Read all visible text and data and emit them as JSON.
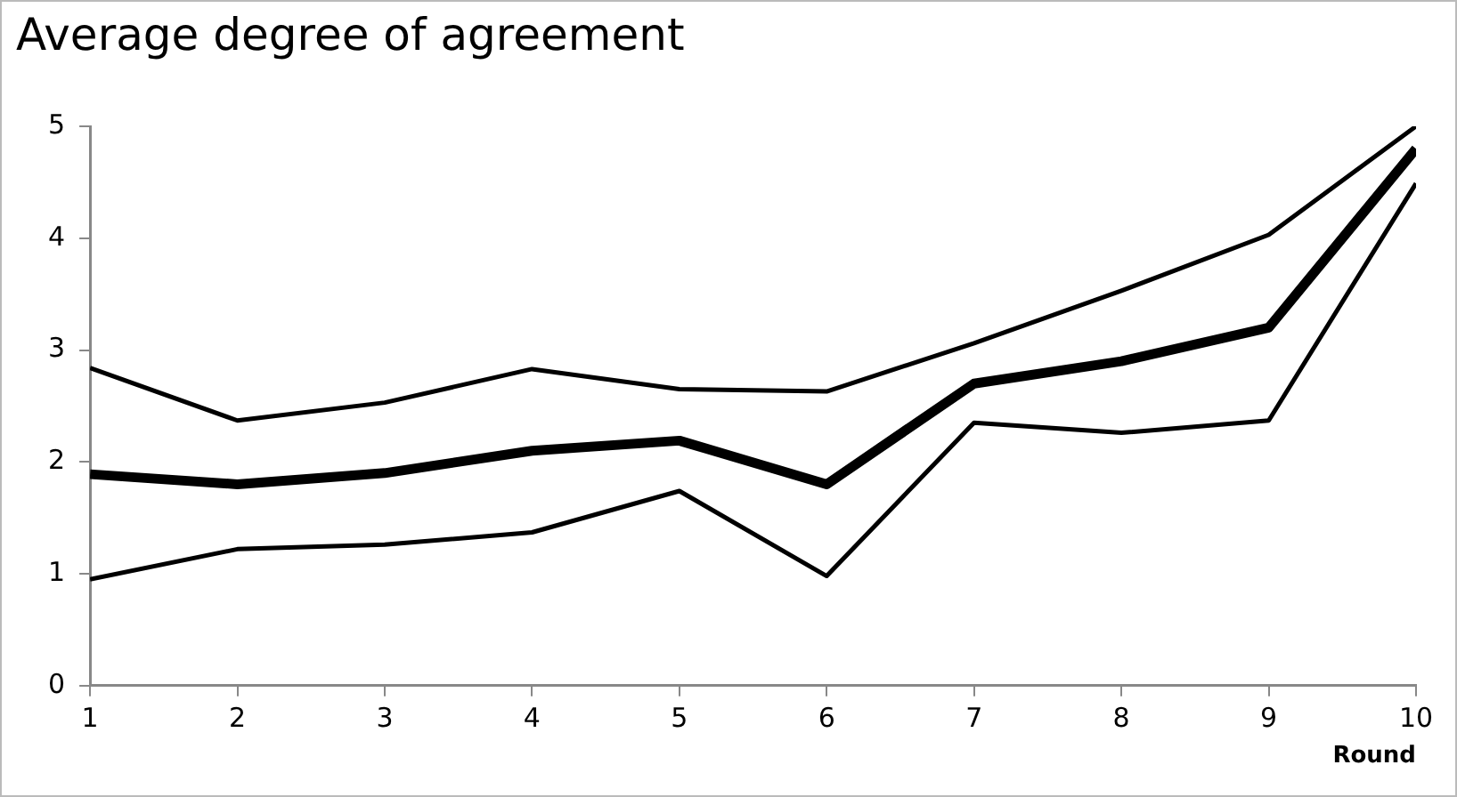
{
  "chart_data": {
    "type": "line",
    "title": "Average degree of agreement",
    "xlabel": "Round",
    "x": [
      1,
      2,
      3,
      4,
      5,
      6,
      7,
      8,
      9,
      10
    ],
    "series": [
      {
        "color": "#000000",
        "values": [
          2.84,
          2.37,
          2.53,
          2.83,
          2.65,
          2.63,
          3.06,
          3.53,
          4.03,
          5.0
        ]
      },
      {
        "color": "#000000",
        "values": [
          1.89,
          1.8,
          1.9,
          2.1,
          2.19,
          1.8,
          2.7,
          2.9,
          3.2,
          4.8
        ]
      },
      {
        "color": "#000000",
        "values": [
          0.95,
          1.22,
          1.26,
          1.37,
          1.74,
          0.98,
          2.35,
          2.26,
          2.37,
          4.49
        ]
      }
    ],
    "xlim": [
      1,
      10
    ],
    "xticks": [
      1,
      2,
      3,
      4,
      5,
      6,
      7,
      8,
      9,
      10
    ],
    "ylim": [
      0,
      5
    ],
    "yticks": [
      0,
      1,
      2,
      3,
      4,
      5
    ],
    "grid": false,
    "legend": false,
    "marker": "none",
    "line_style": "solid"
  }
}
